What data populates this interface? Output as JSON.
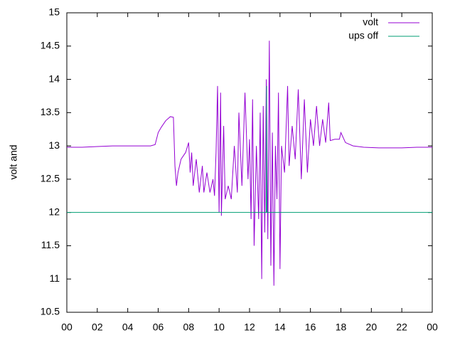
{
  "chart_data": {
    "type": "line",
    "ylabel": "volt and",
    "xlim": [
      0,
      24
    ],
    "xticks": [
      {
        "value": 0,
        "label": "00"
      },
      {
        "value": 2,
        "label": "02"
      },
      {
        "value": 4,
        "label": "04"
      },
      {
        "value": 6,
        "label": "06"
      },
      {
        "value": 8,
        "label": "08"
      },
      10,
      12,
      14,
      16,
      18,
      20,
      22,
      {
        "value": 24,
        "label": "00"
      }
    ],
    "ylim": [
      10.5,
      15
    ],
    "yticks": [
      10.5,
      11,
      11.5,
      12,
      12.5,
      13,
      13.5,
      14,
      14.5,
      15
    ],
    "legend": "top-right",
    "series": [
      {
        "name": "volt",
        "color": "#9400d3",
        "x": [
          0,
          1,
          2,
          3,
          4,
          5.5,
          5.8,
          6.0,
          6.2,
          6.5,
          6.8,
          7.0,
          7.1,
          7.2,
          7.3,
          7.5,
          7.8,
          8.0,
          8.1,
          8.2,
          8.3,
          8.5,
          8.7,
          8.9,
          9.0,
          9.2,
          9.4,
          9.6,
          9.7,
          9.8,
          9.9,
          10.0,
          10.1,
          10.15,
          10.3,
          10.4,
          10.6,
          10.8,
          11.0,
          11.2,
          11.3,
          11.5,
          11.7,
          11.9,
          12.0,
          12.1,
          12.2,
          12.3,
          12.45,
          12.6,
          12.7,
          12.8,
          12.9,
          13.0,
          13.1,
          13.2,
          13.3,
          13.4,
          13.5,
          13.6,
          13.7,
          13.8,
          13.9,
          14.0,
          14.1,
          14.3,
          14.5,
          14.6,
          14.8,
          15.0,
          15.2,
          15.4,
          15.6,
          15.8,
          16.0,
          16.2,
          16.4,
          16.6,
          16.8,
          17.0,
          17.2,
          17.3,
          17.6,
          17.9,
          18.0,
          18.3,
          18.8,
          19.5,
          20.5,
          22,
          23,
          24
        ],
        "values": [
          12.98,
          12.98,
          12.99,
          13.0,
          13.0,
          13.0,
          13.02,
          13.2,
          13.28,
          13.38,
          13.44,
          13.43,
          12.7,
          12.4,
          12.6,
          12.8,
          12.9,
          13.05,
          12.6,
          12.9,
          12.4,
          12.8,
          12.3,
          12.7,
          12.3,
          12.6,
          12.3,
          12.5,
          12.25,
          12.9,
          13.9,
          12.0,
          13.8,
          11.95,
          13.3,
          12.2,
          12.4,
          12.2,
          13.0,
          12.3,
          13.5,
          12.4,
          13.8,
          12.5,
          13.1,
          11.9,
          13.7,
          11.5,
          13.0,
          11.9,
          13.5,
          11.0,
          13.6,
          11.7,
          14.0,
          11.6,
          14.58,
          11.2,
          13.2,
          10.9,
          13.0,
          12.2,
          13.8,
          11.15,
          13.0,
          12.6,
          13.9,
          12.7,
          13.3,
          12.8,
          13.85,
          12.5,
          13.7,
          12.6,
          13.4,
          13.0,
          13.6,
          13.0,
          13.4,
          13.05,
          13.65,
          13.08,
          13.1,
          13.1,
          13.2,
          13.05,
          13.0,
          12.98,
          12.97,
          12.97,
          12.98,
          12.98
        ]
      },
      {
        "name": "ups off",
        "color": "#009e73",
        "x": [
          0,
          13.1,
          13.12,
          13.14,
          24
        ],
        "values": [
          12,
          12,
          13.9,
          12,
          12
        ]
      }
    ]
  }
}
